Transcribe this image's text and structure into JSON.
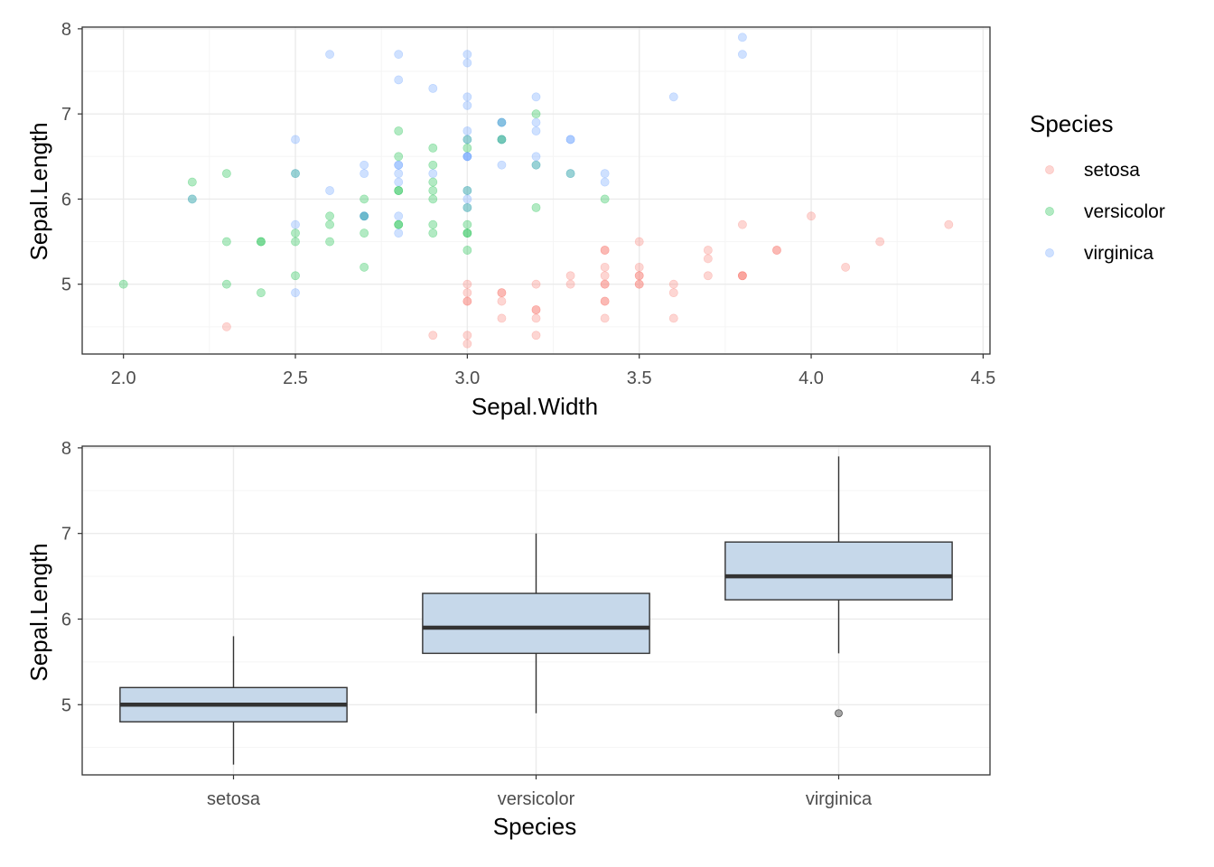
{
  "colors": {
    "setosa": "#F8766D",
    "versicolor": "#00BA38",
    "virginica": "#619CFF",
    "box_fill": "#c6d8ea",
    "outlier": "#888888",
    "grid_major": "#ebebeb",
    "grid_minor": "#f5f5f5",
    "axis_text": "#4d4d4d"
  },
  "chart_data": [
    {
      "type": "scatter",
      "xlabel": "Sepal.Width",
      "ylabel": "Sepal.Length",
      "xlim": [
        1.88,
        4.52
      ],
      "ylim": [
        4.18,
        8.02
      ],
      "x_ticks": [
        2.0,
        2.5,
        3.0,
        3.5,
        4.0,
        4.5
      ],
      "x_tick_labels": [
        "2.0",
        "2.5",
        "3.0",
        "3.5",
        "4.0",
        "4.5"
      ],
      "y_ticks": [
        5,
        6,
        7,
        8
      ],
      "y_tick_labels": [
        "5",
        "6",
        "7",
        "8"
      ],
      "grid": true,
      "legend": {
        "title": "Species",
        "position": "right",
        "entries": [
          "setosa",
          "versicolor",
          "virginica"
        ]
      },
      "series": [
        {
          "name": "setosa",
          "points": [
            [
              3.5,
              5.1
            ],
            [
              3.0,
              4.9
            ],
            [
              3.2,
              4.7
            ],
            [
              3.1,
              4.6
            ],
            [
              3.6,
              5.0
            ],
            [
              3.9,
              5.4
            ],
            [
              3.4,
              4.6
            ],
            [
              3.4,
              5.0
            ],
            [
              2.9,
              4.4
            ],
            [
              3.1,
              4.9
            ],
            [
              3.7,
              5.4
            ],
            [
              3.4,
              4.8
            ],
            [
              3.0,
              4.8
            ],
            [
              3.0,
              4.3
            ],
            [
              4.0,
              5.8
            ],
            [
              4.4,
              5.7
            ],
            [
              3.9,
              5.4
            ],
            [
              3.5,
              5.1
            ],
            [
              3.8,
              5.7
            ],
            [
              3.8,
              5.1
            ],
            [
              3.4,
              5.4
            ],
            [
              3.7,
              5.1
            ],
            [
              3.6,
              4.6
            ],
            [
              3.3,
              5.1
            ],
            [
              3.4,
              4.8
            ],
            [
              3.0,
              5.0
            ],
            [
              3.4,
              5.0
            ],
            [
              3.5,
              5.2
            ],
            [
              3.4,
              5.2
            ],
            [
              3.2,
              4.7
            ],
            [
              3.1,
              4.8
            ],
            [
              3.4,
              5.4
            ],
            [
              4.1,
              5.2
            ],
            [
              4.2,
              5.5
            ],
            [
              3.1,
              4.9
            ],
            [
              3.2,
              5.0
            ],
            [
              3.5,
              5.5
            ],
            [
              3.6,
              4.9
            ],
            [
              3.0,
              4.4
            ],
            [
              3.4,
              5.1
            ],
            [
              3.5,
              5.0
            ],
            [
              2.3,
              4.5
            ],
            [
              3.2,
              4.4
            ],
            [
              3.5,
              5.0
            ],
            [
              3.8,
              5.1
            ],
            [
              3.0,
              4.8
            ],
            [
              3.8,
              5.1
            ],
            [
              3.2,
              4.6
            ],
            [
              3.7,
              5.3
            ],
            [
              3.3,
              5.0
            ]
          ]
        },
        {
          "name": "versicolor",
          "points": [
            [
              3.2,
              7.0
            ],
            [
              3.2,
              6.4
            ],
            [
              3.1,
              6.9
            ],
            [
              2.3,
              5.5
            ],
            [
              2.8,
              6.5
            ],
            [
              2.8,
              5.7
            ],
            [
              3.3,
              6.3
            ],
            [
              2.4,
              4.9
            ],
            [
              2.9,
              6.6
            ],
            [
              2.7,
              5.2
            ],
            [
              2.0,
              5.0
            ],
            [
              3.0,
              5.9
            ],
            [
              2.2,
              6.0
            ],
            [
              2.9,
              6.1
            ],
            [
              2.9,
              5.6
            ],
            [
              3.1,
              6.7
            ],
            [
              3.0,
              5.6
            ],
            [
              2.7,
              5.8
            ],
            [
              2.2,
              6.2
            ],
            [
              2.5,
              5.6
            ],
            [
              3.2,
              5.9
            ],
            [
              2.8,
              6.1
            ],
            [
              2.5,
              6.3
            ],
            [
              2.8,
              6.1
            ],
            [
              2.9,
              6.4
            ],
            [
              3.0,
              6.6
            ],
            [
              2.8,
              6.8
            ],
            [
              3.0,
              6.7
            ],
            [
              2.9,
              6.0
            ],
            [
              2.6,
              5.7
            ],
            [
              2.4,
              5.5
            ],
            [
              2.4,
              5.5
            ],
            [
              2.7,
              5.8
            ],
            [
              2.7,
              6.0
            ],
            [
              3.0,
              5.4
            ],
            [
              3.4,
              6.0
            ],
            [
              3.1,
              6.7
            ],
            [
              2.3,
              6.3
            ],
            [
              3.0,
              5.6
            ],
            [
              2.5,
              5.5
            ],
            [
              2.6,
              5.5
            ],
            [
              3.0,
              6.1
            ],
            [
              2.6,
              5.8
            ],
            [
              2.3,
              5.0
            ],
            [
              2.7,
              5.6
            ],
            [
              3.0,
              5.7
            ],
            [
              2.9,
              5.7
            ],
            [
              2.9,
              6.2
            ],
            [
              2.5,
              5.1
            ],
            [
              2.8,
              5.7
            ]
          ]
        },
        {
          "name": "virginica",
          "points": [
            [
              3.3,
              6.3
            ],
            [
              2.7,
              5.8
            ],
            [
              3.0,
              7.1
            ],
            [
              2.9,
              6.3
            ],
            [
              3.0,
              6.5
            ],
            [
              3.0,
              7.6
            ],
            [
              2.5,
              4.9
            ],
            [
              2.9,
              7.3
            ],
            [
              2.5,
              6.7
            ],
            [
              3.6,
              7.2
            ],
            [
              3.2,
              6.5
            ],
            [
              2.7,
              6.4
            ],
            [
              3.0,
              6.8
            ],
            [
              2.5,
              5.7
            ],
            [
              2.8,
              5.8
            ],
            [
              3.2,
              6.4
            ],
            [
              3.0,
              6.5
            ],
            [
              3.8,
              7.7
            ],
            [
              2.6,
              7.7
            ],
            [
              2.2,
              6.0
            ],
            [
              3.2,
              6.9
            ],
            [
              2.8,
              5.6
            ],
            [
              2.8,
              7.7
            ],
            [
              2.7,
              6.3
            ],
            [
              3.3,
              6.7
            ],
            [
              3.2,
              7.2
            ],
            [
              2.8,
              6.2
            ],
            [
              3.0,
              6.1
            ],
            [
              2.8,
              6.4
            ],
            [
              3.0,
              7.2
            ],
            [
              2.8,
              7.4
            ],
            [
              3.8,
              7.9
            ],
            [
              2.8,
              6.4
            ],
            [
              2.8,
              6.3
            ],
            [
              2.6,
              6.1
            ],
            [
              3.0,
              7.7
            ],
            [
              3.4,
              6.3
            ],
            [
              3.1,
              6.4
            ],
            [
              3.0,
              6.0
            ],
            [
              3.1,
              6.9
            ],
            [
              3.1,
              6.7
            ],
            [
              3.1,
              6.9
            ],
            [
              2.7,
              5.8
            ],
            [
              3.2,
              6.8
            ],
            [
              3.3,
              6.7
            ],
            [
              3.0,
              6.7
            ],
            [
              2.5,
              6.3
            ],
            [
              3.0,
              6.5
            ],
            [
              3.4,
              6.2
            ],
            [
              3.0,
              5.9
            ]
          ]
        }
      ]
    },
    {
      "type": "box",
      "xlabel": "Species",
      "ylabel": "Sepal.Length",
      "categories": [
        "setosa",
        "versicolor",
        "virginica"
      ],
      "ylim": [
        4.18,
        8.02
      ],
      "y_ticks": [
        5,
        6,
        7,
        8
      ],
      "y_tick_labels": [
        "5",
        "6",
        "7",
        "8"
      ],
      "grid": true,
      "boxes": [
        {
          "category": "setosa",
          "whisker_low": 4.3,
          "q1": 4.8,
          "median": 5.0,
          "q3": 5.2,
          "whisker_high": 5.8,
          "outliers": []
        },
        {
          "category": "versicolor",
          "whisker_low": 4.9,
          "q1": 5.6,
          "median": 5.9,
          "q3": 6.3,
          "whisker_high": 7.0,
          "outliers": []
        },
        {
          "category": "virginica",
          "whisker_low": 5.6,
          "q1": 6.225,
          "median": 6.5,
          "q3": 6.9,
          "whisker_high": 7.9,
          "outliers": [
            4.9
          ]
        }
      ]
    }
  ]
}
